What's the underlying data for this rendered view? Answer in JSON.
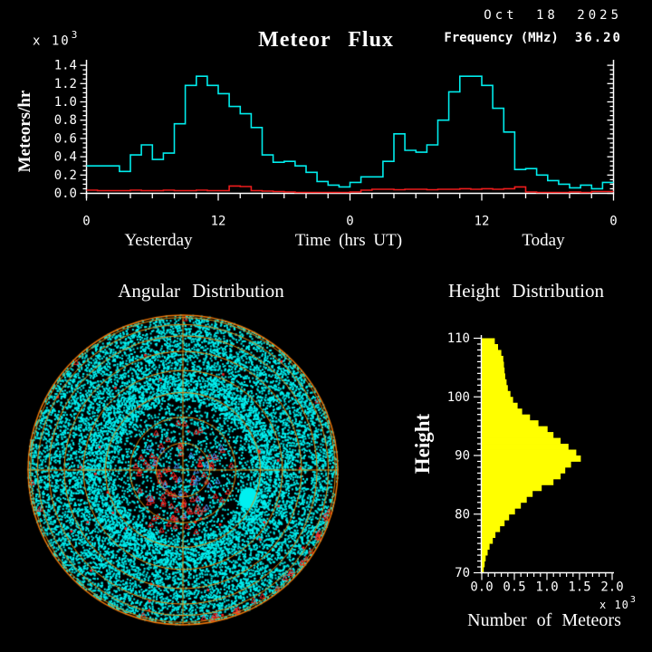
{
  "header": {
    "date": "Oct 18 2025",
    "frequency_label": "Frequency (MHz)",
    "frequency_value": "36.20"
  },
  "chart_data": [
    {
      "type": "line",
      "subtype": "step",
      "title": "Meteor Flux",
      "ylabel": "Meteors/hr",
      "y_multiplier": "x 10",
      "y_multiplier_exp": "3",
      "xlabel": "Time (hrs UT)",
      "day_left": "Yesterday",
      "day_right": "Today",
      "x_tick_labels": [
        "0",
        "12",
        "0",
        "12",
        "0"
      ],
      "y_tick_labels": [
        "0.0",
        "0.2",
        "0.4",
        "0.6",
        "0.8",
        "1.0",
        "1.2",
        "1.4"
      ],
      "ylim": [
        0.0,
        1.45
      ],
      "hours_span": 48,
      "grid": false,
      "series": [
        {
          "name": "meteor-flux-rate",
          "color": "#00ecec",
          "values": [
            0.3,
            0.3,
            0.3,
            0.24,
            0.42,
            0.53,
            0.37,
            0.44,
            0.76,
            1.18,
            1.28,
            1.18,
            1.09,
            0.95,
            0.87,
            0.72,
            0.42,
            0.34,
            0.35,
            0.3,
            0.23,
            0.13,
            0.09,
            0.07,
            0.12,
            0.18,
            0.18,
            0.35,
            0.65,
            0.47,
            0.45,
            0.53,
            0.8,
            1.11,
            1.28,
            1.28,
            1.18,
            0.93,
            0.67,
            0.26,
            0.27,
            0.2,
            0.14,
            0.1,
            0.06,
            0.09,
            0.05,
            0.12
          ]
        },
        {
          "name": "background-rate",
          "color": "#ee1c1c",
          "values": [
            0.035,
            0.03,
            0.03,
            0.03,
            0.035,
            0.03,
            0.03,
            0.035,
            0.03,
            0.03,
            0.035,
            0.03,
            0.03,
            0.08,
            0.074,
            0.03,
            0.025,
            0.02,
            0.015,
            0.01,
            0.01,
            0.01,
            0.01,
            0.01,
            0.015,
            0.035,
            0.045,
            0.045,
            0.04,
            0.045,
            0.045,
            0.04,
            0.045,
            0.045,
            0.05,
            0.045,
            0.05,
            0.045,
            0.05,
            0.07,
            0.015,
            0.01,
            0.01,
            0.01,
            0.015,
            0.01,
            0.02,
            0.02
          ]
        }
      ]
    },
    {
      "type": "scatter",
      "subtype": "polar-sky-map",
      "title": "Angular Distribution",
      "grid_color": "#e08a10",
      "rim_color": "#f07808",
      "rings_elevation_deg": [
        10,
        20,
        30,
        40,
        50,
        60,
        70,
        80
      ],
      "points": {
        "echo_dots": {
          "color": "#00f0f0",
          "count": 14000,
          "size": 2
        },
        "red_triangles": {
          "color": "#ff2020",
          "count_center": 55,
          "count_scatter": 35,
          "count_lower_cluster": 25,
          "count_rim": 30
        },
        "blue_triangles": {
          "color": "#4898ff",
          "count": 22
        }
      },
      "dense_blob": {
        "color": "#00f0f0"
      }
    },
    {
      "type": "bar",
      "subtype": "horizontal-histogram",
      "title": "Height Distribution",
      "ylabel": "Height",
      "xlabel": "Number of Meteors",
      "x_multiplier": "x 10",
      "x_multiplier_exp": "3",
      "bar_color": "#ffff00",
      "y_tick_labels": [
        "70",
        "80",
        "90",
        "100",
        "110"
      ],
      "x_tick_labels": [
        "0.0",
        "0.5",
        "1.0",
        "1.5",
        "2.0"
      ],
      "ylim_km": [
        70,
        110
      ],
      "xlim": [
        0.0,
        2.0
      ],
      "bin_start_km": 70,
      "bin_size_km": 1,
      "values": [
        0.03,
        0.045,
        0.06,
        0.09,
        0.12,
        0.17,
        0.21,
        0.28,
        0.35,
        0.42,
        0.51,
        0.6,
        0.69,
        0.78,
        0.92,
        1.1,
        1.21,
        1.28,
        1.37,
        1.52,
        1.45,
        1.33,
        1.21,
        1.1,
        1.01,
        0.87,
        0.74,
        0.62,
        0.55,
        0.48,
        0.44,
        0.4,
        0.38,
        0.36,
        0.35,
        0.34,
        0.33,
        0.3,
        0.25,
        0.2
      ]
    }
  ]
}
